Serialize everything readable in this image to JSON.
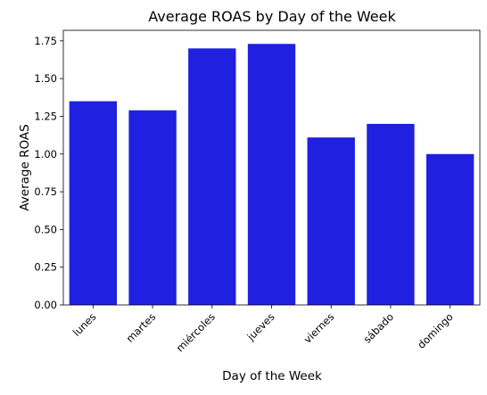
{
  "chart_data": {
    "type": "bar",
    "title": "Average ROAS by Day of the Week",
    "xlabel": "Day of the Week",
    "ylabel": "Average ROAS",
    "categories": [
      "lunes",
      "martes",
      "miércoles",
      "jueves",
      "viernes",
      "sábado",
      "domingo"
    ],
    "values": [
      1.35,
      1.29,
      1.7,
      1.73,
      1.11,
      1.2,
      1.0
    ],
    "ylim": [
      0,
      1.82
    ],
    "yticks": [
      "0.00",
      "0.25",
      "0.50",
      "0.75",
      "1.00",
      "1.25",
      "1.50",
      "1.75"
    ],
    "bar_color": "#2020e0",
    "grid": false,
    "legend": "none"
  }
}
